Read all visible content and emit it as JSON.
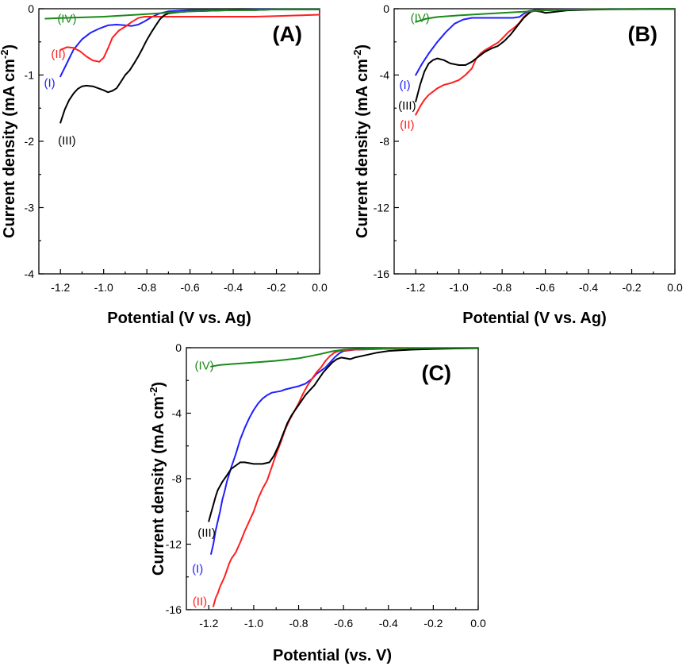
{
  "chart_data": [
    {
      "type": "line",
      "title": "(A)",
      "xlabel": "Potential (V vs. Ag)",
      "ylabel": "Current density (mA cm",
      "ylabel_sup": "-2",
      "ylabel_end": ")",
      "xlim": [
        -1.3,
        0.0
      ],
      "ylim": [
        -4,
        0
      ],
      "xticks": [
        -1.2,
        -1.0,
        -0.8,
        -0.6,
        -0.4,
        -0.2,
        0.0
      ],
      "xtick_labels": [
        "-1.2",
        "-1.0",
        "-0.8",
        "-0.6",
        "-0.4",
        "-0.2",
        "0.0"
      ],
      "yticks": [
        0,
        -1,
        -2,
        -3,
        -4
      ],
      "ytick_labels": [
        "0",
        "-1",
        "-2",
        "-3",
        "-4"
      ],
      "series": [
        {
          "name": "(I)",
          "color": "#1f1fff",
          "x": [
            -1.2,
            -1.17,
            -1.14,
            -1.1,
            -1.06,
            -1.02,
            -0.98,
            -0.94,
            -0.9,
            -0.87,
            -0.84,
            -0.81,
            -0.78,
            -0.74,
            -0.7,
            -0.65,
            -0.6,
            -0.5,
            -0.4,
            -0.3,
            -0.2,
            -0.1,
            0.0
          ],
          "y": [
            -1.02,
            -0.82,
            -0.62,
            -0.46,
            -0.36,
            -0.3,
            -0.25,
            -0.24,
            -0.25,
            -0.26,
            -0.24,
            -0.19,
            -0.13,
            -0.07,
            -0.04,
            -0.03,
            -0.02,
            -0.02,
            -0.02,
            -0.01,
            -0.01,
            -0.01,
            -0.01
          ]
        },
        {
          "name": "(II)",
          "color": "#ff1f1f",
          "x": [
            -1.2,
            -1.17,
            -1.14,
            -1.11,
            -1.08,
            -1.05,
            -1.02,
            -1.0,
            -0.98,
            -0.96,
            -0.93,
            -0.9,
            -0.87,
            -0.84,
            -0.81,
            -0.78,
            -0.7,
            -0.6,
            -0.5,
            -0.4,
            -0.3,
            -0.2,
            -0.1,
            0.0
          ],
          "y": [
            -0.62,
            -0.58,
            -0.59,
            -0.64,
            -0.72,
            -0.78,
            -0.8,
            -0.74,
            -0.6,
            -0.44,
            -0.33,
            -0.27,
            -0.2,
            -0.14,
            -0.12,
            -0.12,
            -0.12,
            -0.12,
            -0.12,
            -0.12,
            -0.12,
            -0.11,
            -0.1,
            -0.09
          ]
        },
        {
          "name": "(III)",
          "color": "#000000",
          "x": [
            -1.2,
            -1.18,
            -1.16,
            -1.14,
            -1.12,
            -1.1,
            -1.08,
            -1.05,
            -1.0,
            -0.98,
            -0.96,
            -0.94,
            -0.92,
            -0.9,
            -0.88,
            -0.86,
            -0.84,
            -0.82,
            -0.8,
            -0.78,
            -0.76,
            -0.74,
            -0.72,
            -0.7,
            -0.65,
            -0.6,
            -0.5,
            -0.4,
            -0.3,
            -0.2,
            -0.1,
            0.0
          ],
          "y": [
            -1.72,
            -1.52,
            -1.38,
            -1.28,
            -1.21,
            -1.17,
            -1.16,
            -1.17,
            -1.23,
            -1.26,
            -1.24,
            -1.2,
            -1.1,
            -1.0,
            -0.93,
            -0.83,
            -0.72,
            -0.6,
            -0.47,
            -0.36,
            -0.26,
            -0.16,
            -0.1,
            -0.07,
            -0.05,
            -0.04,
            -0.03,
            -0.02,
            -0.02,
            -0.01,
            -0.01,
            -0.01
          ]
        },
        {
          "name": "(IV)",
          "color": "#1a8a1a",
          "x": [
            -1.27,
            -1.2,
            -1.1,
            -1.0,
            -0.9,
            -0.8,
            -0.7,
            -0.6,
            -0.5,
            -0.4,
            -0.3,
            -0.2,
            -0.1,
            0.0
          ],
          "y": [
            -0.15,
            -0.14,
            -0.13,
            -0.12,
            -0.1,
            -0.08,
            -0.06,
            -0.04,
            -0.03,
            -0.02,
            -0.02,
            -0.01,
            -0.01,
            -0.01
          ]
        }
      ],
      "annotations": [
        {
          "text": "(IV)",
          "series": "(IV)",
          "x": -1.17,
          "y": -0.15
        },
        {
          "text": "(II)",
          "series": "(II)",
          "x": -1.21,
          "y": -0.68
        },
        {
          "text": "(I)",
          "series": "(I)",
          "x": -1.25,
          "y": -1.12
        },
        {
          "text": "(III)",
          "series": "(III)",
          "x": -1.17,
          "y": -1.99
        }
      ]
    },
    {
      "type": "line",
      "title": "(B)",
      "xlabel": "Potential (V vs. Ag)",
      "ylabel": "Current density (mA cm",
      "ylabel_sup": "-2",
      "ylabel_end": ")",
      "xlim": [
        -1.3,
        0.0
      ],
      "ylim": [
        -16,
        0
      ],
      "xticks": [
        -1.2,
        -1.0,
        -0.8,
        -0.6,
        -0.4,
        -0.2,
        0.0
      ],
      "xtick_labels": [
        "-1.2",
        "-1.0",
        "-0.8",
        "-0.6",
        "-0.4",
        "-0.2",
        "0.0"
      ],
      "yticks": [
        0,
        -4,
        -8,
        -12,
        -16
      ],
      "ytick_labels": [
        "0",
        "-4",
        "-8",
        "-12",
        "-16"
      ],
      "series": [
        {
          "name": "(I)",
          "color": "#1f1fff",
          "x": [
            -1.2,
            -1.17,
            -1.14,
            -1.1,
            -1.06,
            -1.02,
            -0.98,
            -0.94,
            -0.9,
            -0.85,
            -0.8,
            -0.75,
            -0.72,
            -0.7,
            -0.68,
            -0.65,
            -0.6,
            -0.5,
            -0.4,
            -0.3,
            -0.2,
            -0.1,
            0.0
          ],
          "y": [
            -4.0,
            -3.3,
            -2.7,
            -2.0,
            -1.4,
            -0.9,
            -0.65,
            -0.55,
            -0.55,
            -0.55,
            -0.55,
            -0.55,
            -0.5,
            -0.3,
            -0.15,
            -0.08,
            -0.05,
            -0.04,
            -0.03,
            -0.02,
            -0.02,
            -0.01,
            -0.01
          ]
        },
        {
          "name": "(II)",
          "color": "#ff1f1f",
          "x": [
            -1.2,
            -1.18,
            -1.16,
            -1.14,
            -1.12,
            -1.1,
            -1.07,
            -1.04,
            -1.0,
            -0.97,
            -0.94,
            -0.92,
            -0.9,
            -0.88,
            -0.86,
            -0.84,
            -0.82,
            -0.8,
            -0.77,
            -0.74,
            -0.72,
            -0.7,
            -0.68,
            -0.66,
            -0.6,
            -0.5,
            -0.4,
            -0.3,
            -0.2,
            -0.1,
            0.0
          ],
          "y": [
            -6.4,
            -5.9,
            -5.5,
            -5.2,
            -5.0,
            -4.8,
            -4.6,
            -4.5,
            -4.3,
            -4.0,
            -3.6,
            -3.0,
            -2.7,
            -2.5,
            -2.35,
            -2.2,
            -2.05,
            -1.8,
            -1.4,
            -1.1,
            -0.85,
            -0.5,
            -0.25,
            -0.12,
            -0.07,
            -0.05,
            -0.04,
            -0.03,
            -0.02,
            -0.02,
            -0.01
          ]
        },
        {
          "name": "(III)",
          "color": "#000000",
          "x": [
            -1.2,
            -1.18,
            -1.16,
            -1.14,
            -1.12,
            -1.1,
            -1.07,
            -1.04,
            -1.0,
            -0.97,
            -0.94,
            -0.92,
            -0.9,
            -0.88,
            -0.85,
            -0.82,
            -0.79,
            -0.76,
            -0.73,
            -0.7,
            -0.67,
            -0.65,
            -0.62,
            -0.6,
            -0.55,
            -0.5,
            -0.4,
            -0.3,
            -0.2,
            -0.1,
            0.0
          ],
          "y": [
            -5.6,
            -4.6,
            -3.8,
            -3.3,
            -3.1,
            -3.0,
            -3.1,
            -3.3,
            -3.4,
            -3.4,
            -3.2,
            -3.0,
            -2.8,
            -2.6,
            -2.4,
            -2.25,
            -1.95,
            -1.55,
            -1.05,
            -0.55,
            -0.2,
            -0.12,
            -0.18,
            -0.25,
            -0.18,
            -0.1,
            -0.06,
            -0.04,
            -0.03,
            -0.02,
            -0.01
          ]
        },
        {
          "name": "(IV)",
          "color": "#1a8a1a",
          "x": [
            -1.2,
            -1.15,
            -1.1,
            -1.0,
            -0.9,
            -0.8,
            -0.7,
            -0.6,
            -0.5,
            -0.4,
            -0.3,
            -0.2,
            -0.1,
            0.0
          ],
          "y": [
            -0.8,
            -0.6,
            -0.5,
            -0.4,
            -0.32,
            -0.25,
            -0.18,
            -0.1,
            -0.06,
            -0.04,
            -0.03,
            -0.02,
            -0.01,
            -0.01
          ]
        }
      ],
      "annotations": [
        {
          "text": "(IV)",
          "series": "(IV)",
          "x": -1.18,
          "y": -0.55
        },
        {
          "text": "(I)",
          "series": "(I)",
          "x": -1.25,
          "y": -4.6
        },
        {
          "text": "(III)",
          "series": "(III)",
          "x": -1.24,
          "y": -5.85
        },
        {
          "text": "(II)",
          "series": "(II)",
          "x": -1.24,
          "y": -7.0
        }
      ]
    },
    {
      "type": "line",
      "title": "(C)",
      "xlabel": "Potential (vs. V)",
      "ylabel": "Current density (mA cm",
      "ylabel_sup": "-2",
      "ylabel_end": ")",
      "xlim": [
        -1.3,
        0.0
      ],
      "ylim": [
        -16,
        0
      ],
      "xticks": [
        -1.2,
        -1.0,
        -0.8,
        -0.6,
        -0.4,
        -0.2,
        0.0
      ],
      "xtick_labels": [
        "-1.2",
        "-1.0",
        "-0.8",
        "-0.6",
        "-0.4",
        "-0.2",
        "0.0"
      ],
      "yticks": [
        0,
        -4,
        -8,
        -12,
        -16
      ],
      "ytick_labels": [
        "0",
        "-4",
        "-8",
        "-12",
        "-16"
      ],
      "series": [
        {
          "name": "(I)",
          "color": "#1f1fff",
          "x": [
            -1.19,
            -1.18,
            -1.17,
            -1.16,
            -1.15,
            -1.14,
            -1.13,
            -1.12,
            -1.1,
            -1.08,
            -1.06,
            -1.04,
            -1.02,
            -1.0,
            -0.98,
            -0.96,
            -0.94,
            -0.92,
            -0.9,
            -0.88,
            -0.86,
            -0.83,
            -0.8,
            -0.77,
            -0.74,
            -0.72,
            -0.7,
            -0.68,
            -0.66,
            -0.64,
            -0.62,
            -0.6,
            -0.55,
            -0.5,
            -0.45,
            -0.4,
            -0.3,
            -0.2,
            -0.1,
            0.0
          ],
          "y": [
            -12.6,
            -12.0,
            -11.2,
            -10.6,
            -10.0,
            -9.3,
            -8.8,
            -8.2,
            -7.3,
            -6.5,
            -5.6,
            -4.9,
            -4.3,
            -3.8,
            -3.4,
            -3.1,
            -2.9,
            -2.75,
            -2.7,
            -2.65,
            -2.55,
            -2.45,
            -2.35,
            -2.2,
            -1.9,
            -1.6,
            -1.4,
            -1.2,
            -0.9,
            -0.6,
            -0.35,
            -0.2,
            -0.12,
            -0.1,
            -0.08,
            -0.07,
            -0.05,
            -0.04,
            -0.03,
            -0.02
          ]
        },
        {
          "name": "(II)",
          "color": "#ff1f1f",
          "x": [
            -1.18,
            -1.17,
            -1.16,
            -1.15,
            -1.14,
            -1.13,
            -1.12,
            -1.11,
            -1.1,
            -1.08,
            -1.06,
            -1.04,
            -1.02,
            -1.0,
            -0.98,
            -0.96,
            -0.94,
            -0.92,
            -0.9,
            -0.88,
            -0.86,
            -0.84,
            -0.82,
            -0.8,
            -0.78,
            -0.76,
            -0.74,
            -0.72,
            -0.7,
            -0.68,
            -0.66,
            -0.64,
            -0.62,
            -0.6,
            -0.55,
            -0.5,
            -0.45,
            -0.4,
            -0.3,
            -0.2,
            -0.1,
            0.0
          ],
          "y": [
            -15.8,
            -15.3,
            -15.0,
            -14.6,
            -14.3,
            -14.0,
            -13.6,
            -13.2,
            -12.9,
            -12.5,
            -11.9,
            -11.2,
            -10.6,
            -10.0,
            -9.2,
            -8.6,
            -8.1,
            -7.3,
            -6.5,
            -5.8,
            -5.0,
            -4.4,
            -3.9,
            -3.4,
            -2.8,
            -2.3,
            -1.9,
            -1.5,
            -1.2,
            -0.8,
            -0.5,
            -0.3,
            -0.2,
            -0.15,
            -0.12,
            -0.1,
            -0.08,
            -0.07,
            -0.05,
            -0.04,
            -0.03,
            -0.02
          ]
        },
        {
          "name": "(III)",
          "color": "#000000",
          "x": [
            -1.2,
            -1.19,
            -1.18,
            -1.17,
            -1.16,
            -1.14,
            -1.12,
            -1.1,
            -1.08,
            -1.06,
            -1.04,
            -1.0,
            -0.96,
            -0.93,
            -0.91,
            -0.89,
            -0.87,
            -0.85,
            -0.83,
            -0.81,
            -0.79,
            -0.77,
            -0.75,
            -0.73,
            -0.71,
            -0.69,
            -0.67,
            -0.65,
            -0.63,
            -0.61,
            -0.59,
            -0.57,
            -0.55,
            -0.5,
            -0.45,
            -0.4,
            -0.3,
            -0.2,
            -0.1,
            0.0
          ],
          "y": [
            -10.6,
            -10.1,
            -9.6,
            -9.1,
            -8.7,
            -8.2,
            -7.8,
            -7.4,
            -7.2,
            -7.0,
            -7.0,
            -7.1,
            -7.1,
            -7.0,
            -6.6,
            -6.0,
            -5.3,
            -4.6,
            -4.1,
            -3.7,
            -3.3,
            -2.9,
            -2.6,
            -2.3,
            -1.9,
            -1.5,
            -1.2,
            -0.9,
            -0.7,
            -0.6,
            -0.65,
            -0.7,
            -0.6,
            -0.45,
            -0.3,
            -0.2,
            -0.12,
            -0.08,
            -0.05,
            -0.03
          ]
        },
        {
          "name": "(IV)",
          "color": "#1a8a1a",
          "x": [
            -1.19,
            -1.15,
            -1.1,
            -1.0,
            -0.9,
            -0.8,
            -0.75,
            -0.7,
            -0.65,
            -0.6,
            -0.55,
            -0.5,
            -0.4,
            -0.3,
            -0.2,
            -0.1,
            0.0
          ],
          "y": [
            -1.15,
            -1.05,
            -1.0,
            -0.9,
            -0.8,
            -0.65,
            -0.52,
            -0.38,
            -0.22,
            -0.12,
            -0.08,
            -0.06,
            -0.04,
            -0.03,
            -0.02,
            -0.02,
            -0.01
          ]
        }
      ],
      "annotations": [
        {
          "text": "(IV)",
          "series": "(IV)",
          "x": -1.22,
          "y": -1.1
        },
        {
          "text": "(III)",
          "series": "(III)",
          "x": -1.21,
          "y": -11.3
        },
        {
          "text": "(I)",
          "series": "(I)",
          "x": -1.25,
          "y": -13.5
        },
        {
          "text": "(II)",
          "series": "(II)",
          "x": -1.24,
          "y": -15.5
        }
      ]
    }
  ]
}
